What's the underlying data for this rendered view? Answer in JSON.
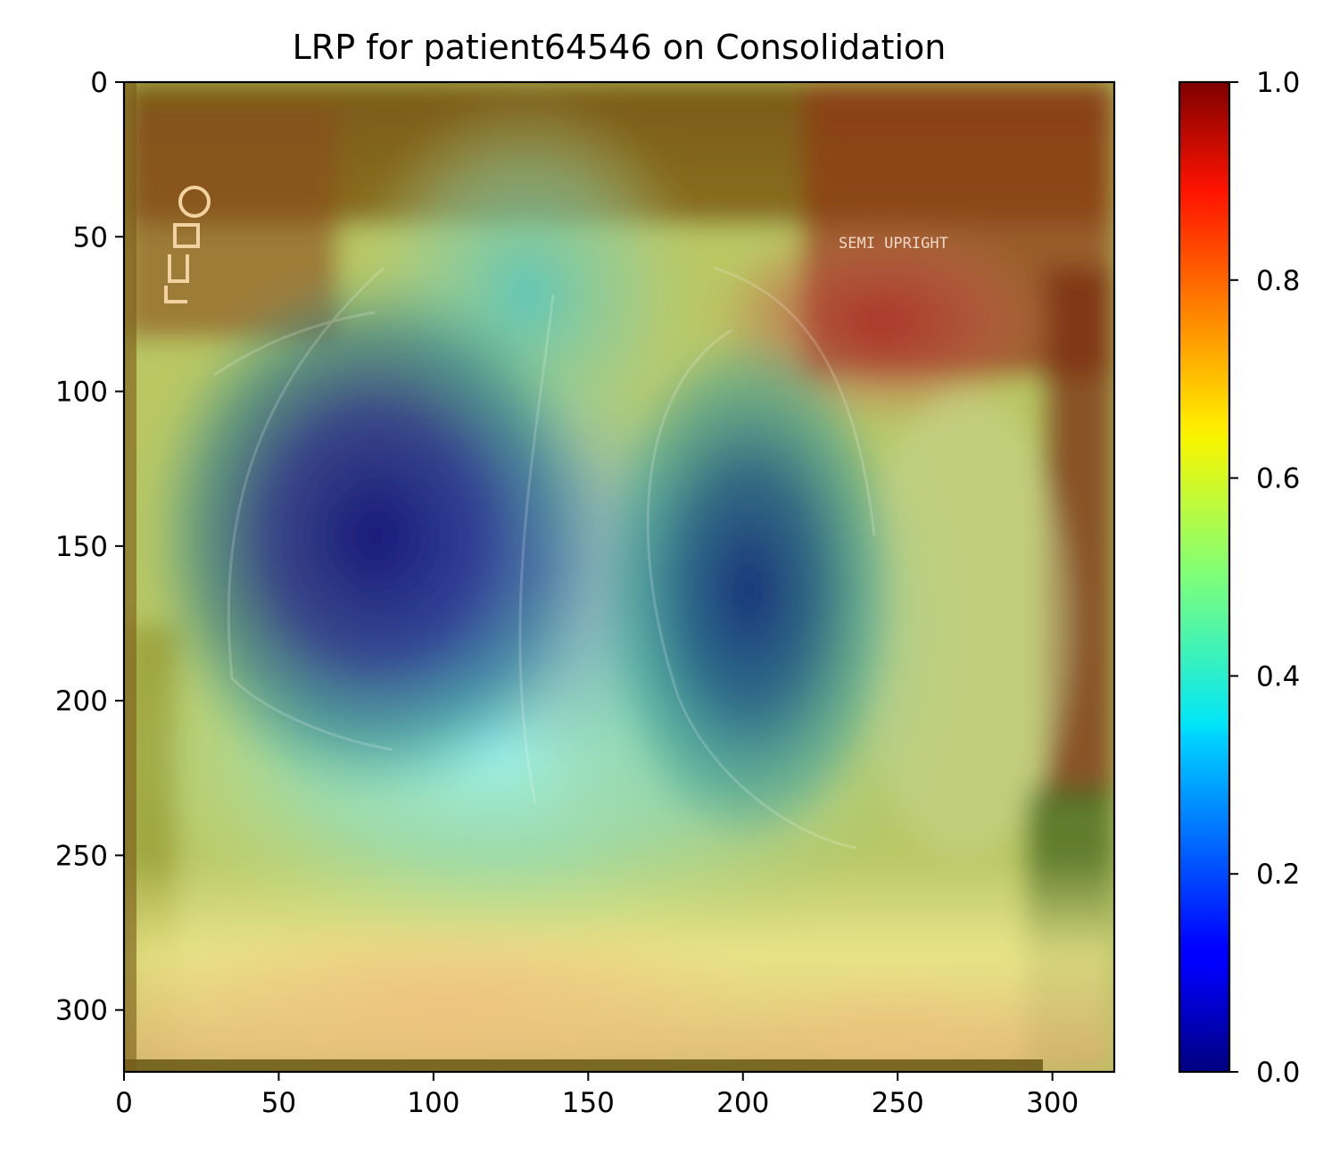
{
  "chart_data": {
    "type": "heatmap",
    "title": "LRP for patient64546 on Consolidation",
    "image_extent": {
      "x": [
        0,
        320
      ],
      "y": [
        320,
        0
      ]
    },
    "x_ticks": [
      0,
      50,
      100,
      150,
      200,
      250,
      300
    ],
    "y_ticks": [
      0,
      50,
      100,
      150,
      200,
      250,
      300
    ],
    "grid": false,
    "colormap": "jet",
    "overlay_text": "SEMI UPRIGHT",
    "colorbar": {
      "range": [
        0.0,
        1.0
      ],
      "ticks": [
        "0.0",
        "0.2",
        "0.4",
        "0.6",
        "0.8",
        "1.0"
      ],
      "position": "right"
    },
    "relevance_regions": [
      {
        "name": "right-lung-low",
        "cx": 75,
        "cy": 160,
        "value": 0.05
      },
      {
        "name": "left-lung-low",
        "cx": 205,
        "cy": 175,
        "value": 0.12
      },
      {
        "name": "mediastinum-mid",
        "cx": 130,
        "cy": 190,
        "value": 0.25
      },
      {
        "name": "lower-chest",
        "cx": 125,
        "cy": 240,
        "value": 0.38
      },
      {
        "name": "top-right-corner",
        "cx": 300,
        "cy": 80,
        "value": 0.9
      },
      {
        "name": "bottom-region",
        "cx": 150,
        "cy": 300,
        "value": 0.65
      }
    ]
  }
}
